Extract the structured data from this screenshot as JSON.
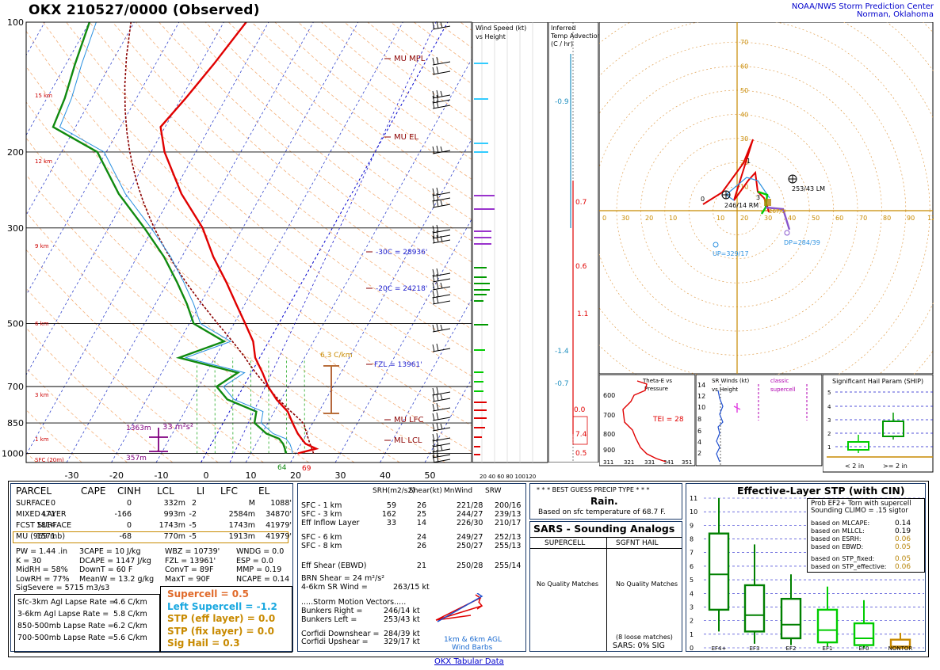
{
  "header": {
    "title": "OKX   210527/0000  (Observed)",
    "org_line1": "NOAA/NWS Storm Prediction Center",
    "org_line2": "Norman, Oklahoma"
  },
  "chart_data": [
    {
      "type": "line",
      "name": "skew-t",
      "pressure_ticks": [
        "100",
        "200",
        "300",
        "500",
        "700",
        "850",
        "1000"
      ],
      "temp_ticks": [
        "-30",
        "-20",
        "-10",
        "0",
        "10",
        "20",
        "30",
        "40",
        "50"
      ],
      "height_markers": [
        "15 km",
        "12 km",
        "9 km",
        "6 km",
        "3 km",
        "1 km",
        "SFC (20m)"
      ],
      "annotations": {
        "mu_mpl": "MU  MPL",
        "mu_el": "MU  EL",
        "mu_lfc": "MU  LFC",
        "ml_lcl": "ML  LCL",
        "m30c": "-30C = 28936'",
        "m20c": "-20C = 24218'",
        "fzl": "FZL = 13961'",
        "lapse": "6.3 C/km",
        "srh_top": "1363m",
        "srh_val": "33 m²s²",
        "srh_bot": "357m",
        "sfc_td": "64",
        "sfc_t": "69"
      },
      "temperature": [
        [
          1000,
          20.5
        ],
        [
          975,
          24
        ],
        [
          950,
          21
        ],
        [
          925,
          19.5
        ],
        [
          900,
          18
        ],
        [
          850,
          15.5
        ],
        [
          800,
          13
        ],
        [
          750,
          9
        ],
        [
          700,
          5.5
        ],
        [
          650,
          2.5
        ],
        [
          600,
          -1
        ],
        [
          550,
          -3.5
        ],
        [
          500,
          -7.5
        ],
        [
          450,
          -12
        ],
        [
          400,
          -17
        ],
        [
          350,
          -23
        ],
        [
          300,
          -29
        ],
        [
          250,
          -38
        ],
        [
          200,
          -47
        ],
        [
          175,
          -51
        ],
        [
          150,
          -49
        ],
        [
          125,
          -47
        ],
        [
          100,
          -45
        ]
      ],
      "dewpoint": [
        [
          1000,
          17.8
        ],
        [
          975,
          17
        ],
        [
          950,
          16
        ],
        [
          925,
          14.5
        ],
        [
          900,
          11
        ],
        [
          850,
          7
        ],
        [
          800,
          6
        ],
        [
          750,
          -2
        ],
        [
          700,
          -6
        ],
        [
          650,
          -3
        ],
        [
          600,
          -18
        ],
        [
          550,
          -10
        ],
        [
          500,
          -19
        ],
        [
          450,
          -23
        ],
        [
          400,
          -28
        ],
        [
          350,
          -34
        ],
        [
          300,
          -42
        ],
        [
          250,
          -52
        ],
        [
          200,
          -62
        ],
        [
          175,
          -75
        ],
        [
          150,
          -76
        ],
        [
          125,
          -78
        ],
        [
          100,
          -80
        ]
      ]
    },
    {
      "type": "bar",
      "name": "wind-speed-vs-height",
      "title_line1": "Wind Speed (kt)",
      "title_line2": "vs Height",
      "x_ticks": "20 40 60 80 100120"
    },
    {
      "type": "line",
      "name": "inferred-temp-advection",
      "title_line1": "Inferred",
      "title_line2": "Temp Advection",
      "title_line3": "(C / hr)",
      "values": [
        "-0.9",
        "0.7",
        "0.6",
        "1.1",
        "-1.4",
        "-0.7",
        "0.0",
        "7.4",
        "0.5"
      ]
    },
    {
      "type": "line",
      "name": "hodograph",
      "ring_labels": [
        "10",
        "20",
        "30",
        "40",
        "50",
        "60",
        "70"
      ],
      "x_labels": [
        "0",
        "30",
        "20",
        "10",
        "10",
        "20",
        "30",
        "40",
        "50",
        "60",
        "70",
        "80",
        "90",
        "120"
      ],
      "labels": {
        "lm": "253/43 LM",
        "rm": "246/14 RM",
        "dp": "DP=284/39",
        "up": "UP=329/17",
        "origin": "0",
        "k1": "1",
        "k3": "3",
        "sm": "267/0"
      }
    },
    {
      "type": "line",
      "name": "theta-e-vs-pressure",
      "title_line1": "Theta-E vs",
      "title_line2": "Pressure",
      "y_ticks": [
        "600",
        "700",
        "800",
        "900"
      ],
      "x_ticks": [
        "311",
        "321",
        "331",
        "341",
        "351"
      ],
      "tei": "TEI = 28"
    },
    {
      "type": "line",
      "name": "sr-winds-vs-height",
      "title_line1": "SR Winds (kt)",
      "title_line2": "vs Height",
      "y_ticks": [
        "14",
        "12",
        "10",
        "8",
        "6",
        "4",
        "2"
      ],
      "classic": "classic",
      "supercell": "supercell"
    },
    {
      "type": "bar",
      "name": "ship",
      "title": "Significant Hail Param (SHIP)",
      "y_ticks": [
        "5",
        "4",
        "3",
        "2",
        "1"
      ],
      "categories": [
        "< 2 in",
        ">= 2 in"
      ]
    },
    {
      "type": "bar",
      "name": "effective-layer-stp",
      "title": "Effective-Layer STP (with CIN)",
      "categories": [
        "EF4+",
        "EF3",
        "EF2",
        "EF1",
        "EF0",
        "NONTOR"
      ],
      "y_ticks": [
        "11",
        "10",
        "9",
        "8",
        "7",
        "6",
        "5",
        "4",
        "3",
        "2",
        "1",
        "0"
      ],
      "boxes": [
        {
          "lo": 1.2,
          "q1": 2.8,
          "med": 5.4,
          "q3": 8.4,
          "hi": 11.0
        },
        {
          "lo": 0.3,
          "q1": 1.2,
          "med": 2.4,
          "q3": 4.6,
          "hi": 7.6
        },
        {
          "lo": 0.2,
          "q1": 0.7,
          "med": 1.7,
          "q3": 3.6,
          "hi": 5.4
        },
        {
          "lo": 0.1,
          "q1": 0.4,
          "med": 1.3,
          "q3": 2.8,
          "hi": 4.5
        },
        {
          "lo": 0.0,
          "q1": 0.2,
          "med": 0.7,
          "q3": 1.8,
          "hi": 3.5
        },
        {
          "lo": 0.0,
          "q1": 0.0,
          "med": 0.1,
          "q3": 0.6,
          "hi": 1.1
        }
      ],
      "prob_box": {
        "title1": "Prob EF2+ Torn with supercell",
        "title2": "Sounding CLIMO = .15 sigtor",
        "rows": [
          {
            "label": "based on MLCAPE:",
            "value": "0.14",
            "color": "#000000"
          },
          {
            "label": "based on MLLCL:",
            "value": "0.19",
            "color": "#000000"
          },
          {
            "label": "based on ESRH:",
            "value": "0.06",
            "color": "#b8860b"
          },
          {
            "label": "based on EBWD:",
            "value": "0.05",
            "color": "#b8860b"
          },
          {
            "label": "based on STP_fixed:",
            "value": "0.05",
            "color": "#b8860b"
          },
          {
            "label": "based on STP_effective:",
            "value": "0.06",
            "color": "#b8860b"
          }
        ]
      }
    }
  ],
  "parcel": {
    "headers": [
      "PARCEL",
      "CAPE",
      "CINH",
      "LCL",
      "LI",
      "LFC",
      "EL"
    ],
    "rows": [
      [
        "SURFACE",
        "0",
        "0",
        "332m",
        "2",
        "M",
        "1088'"
      ],
      [
        "MIXED LAYER",
        "471",
        "-166",
        "993m",
        "-2",
        "2584m",
        "34870'"
      ],
      [
        "FCST SURFACE",
        "1814",
        "0",
        "1743m",
        "-5",
        "1743m",
        "41979'"
      ],
      [
        "MU   (969 mb)",
        "1571",
        "-68",
        "770m",
        "-5",
        "1913m",
        "41979'"
      ]
    ],
    "indices": [
      [
        "PW = 1.44 .in",
        "3CAPE = 10 J/kg",
        "WBZ = 10739'",
        "WNDG = 0.0"
      ],
      [
        "K = 30",
        "DCAPE = 1147 J/kg",
        "FZL = 13961'",
        "ESP = 0.0"
      ],
      [
        "MidRH = 58%",
        "DownT = 60 F",
        "ConvT = 89F",
        "MMP = 0.19"
      ],
      [
        "LowRH = 77%",
        "MeanW = 13.2 g/kg",
        "MaxT = 90F",
        "NCAPE = 0.14"
      ]
    ],
    "sig_severe": "SigSevere = 5715 m3/s3",
    "lapse_rates": [
      [
        "Sfc-3km Agl Lapse Rate =",
        "4.6 C/km"
      ],
      [
        "3-6km Agl Lapse Rate =",
        "5.8 C/km"
      ],
      [
        "850-500mb Lapse Rate =",
        "6.2 C/km"
      ],
      [
        "700-500mb Lapse Rate =",
        "5.6 C/km"
      ]
    ],
    "composites": [
      {
        "text": "Supercell = 0.5",
        "color": "#e06a2a"
      },
      {
        "text": "Left Supercell = -1.2",
        "color": "#1aa8e0"
      },
      {
        "text": "STP (eff layer) = 0.0",
        "color": "#c88a00"
      },
      {
        "text": "STP (fix layer) = 0.0",
        "color": "#c88a00"
      },
      {
        "text": "Sig Hail = 0.3",
        "color": "#c88a00"
      }
    ]
  },
  "kinematics": {
    "headers": [
      "SRH(m2/s2)",
      "Shear(kt)",
      "MnWind",
      "SRW"
    ],
    "rows1": [
      [
        "SFC - 1 km",
        "59",
        "26",
        "221/28",
        "200/16"
      ],
      [
        "SFC - 3 km",
        "162",
        "25",
        "244/27",
        "239/13"
      ],
      [
        "Eff Inflow Layer",
        "33",
        "14",
        "226/30",
        "210/17"
      ]
    ],
    "rows2": [
      [
        "SFC - 6 km",
        "",
        "24",
        "249/27",
        "252/13"
      ],
      [
        "SFC - 8 km",
        "",
        "26",
        "250/27",
        "255/13"
      ]
    ],
    "eff_shear": [
      "Eff Shear (EBWD)",
      "",
      "21",
      "250/28",
      "255/14"
    ],
    "brn": "BRN Shear =  24 m²/s²",
    "sr46": [
      "4-6km SR Wind =",
      "263/15 kt"
    ],
    "storm_motion_title": ".....Storm Motion Vectors.....",
    "storm_motion": [
      [
        "Bunkers Right =",
        "246/14 kt"
      ],
      [
        "Bunkers Left =",
        "253/43 kt"
      ],
      [
        "Corfidi Downshear =",
        "284/39 kt"
      ],
      [
        "Corfidi Upshear =",
        "329/17 kt"
      ]
    ],
    "barb_label1": "1km & 6km AGL",
    "barb_label2": "Wind Barbs"
  },
  "precip": {
    "title": "* * * BEST GUESS PRECIP TYPE * * *",
    "value": "Rain.",
    "note": "Based on sfc temperature of 68.7 F."
  },
  "sars": {
    "title": "SARS - Sounding Analogs",
    "col1": "SUPERCELL",
    "col2": "SGFNT HAIL",
    "no1": "No Quality Matches",
    "no2": "No Quality Matches",
    "loose": "(8 loose matches)",
    "sig": "SARS:  0% SIG"
  },
  "footer": {
    "link": "OKX Tabular Data"
  }
}
